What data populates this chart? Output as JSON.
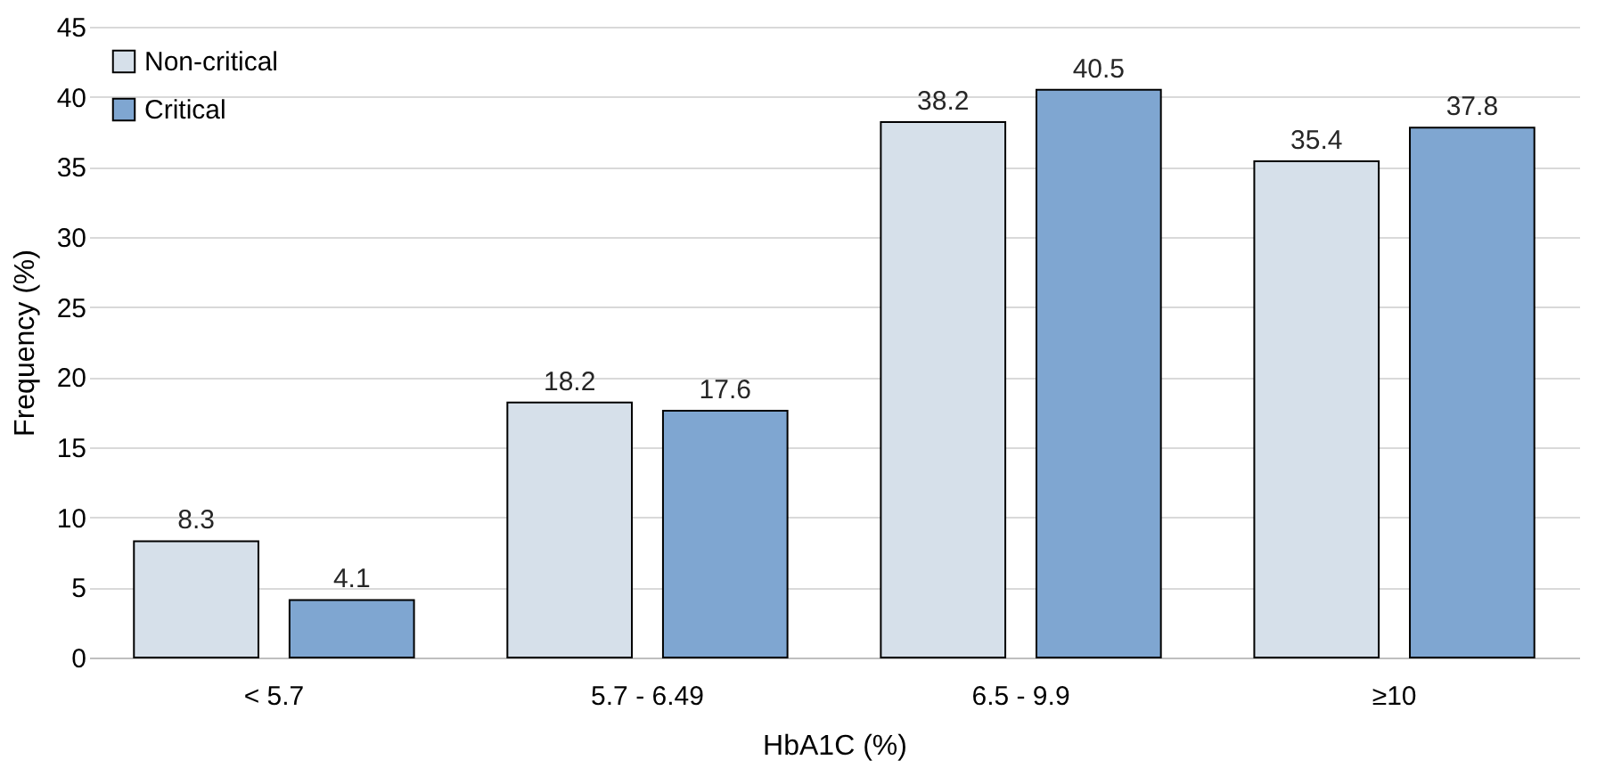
{
  "chart_data": {
    "type": "bar",
    "xlabel": "HbA1C (%)",
    "ylabel": "Frequency (%)",
    "categories": [
      "< 5.7",
      "5.7 - 6.49",
      "6.5 - 9.9",
      "≥10"
    ],
    "series": [
      {
        "name": "Non-critical",
        "color": "#d6e0ea",
        "values": [
          8.3,
          18.2,
          38.2,
          35.4
        ]
      },
      {
        "name": "Critical",
        "color": "#7fa6d1",
        "values": [
          4.1,
          17.6,
          40.5,
          37.8
        ]
      }
    ],
    "ylim": [
      0,
      45
    ],
    "yticks": [
      0,
      5,
      10,
      15,
      20,
      25,
      30,
      35,
      40,
      45
    ],
    "grid": "y",
    "legend": "top left",
    "data_labels": true
  }
}
